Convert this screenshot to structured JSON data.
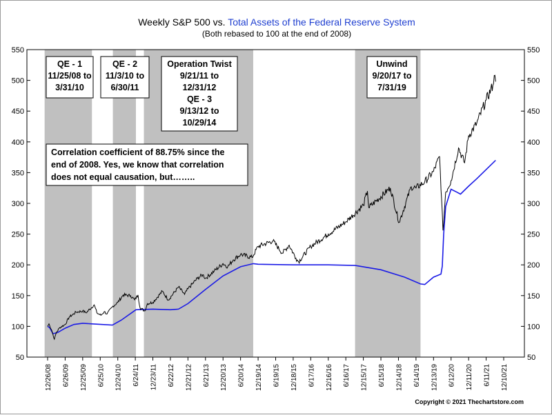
{
  "chart_data": {
    "type": "line",
    "title": {
      "prefix": "Weekly S&P 500 vs. ",
      "highlight": "Total Assets of the Federal Reserve System"
    },
    "subtitle": "(Both rebased to 100 at the end of 2008)",
    "copyright": "Copyright © 2021 Thechartstore.com",
    "ylim": [
      50,
      550
    ],
    "yticks": [
      "50",
      "100",
      "150",
      "200",
      "250",
      "300",
      "350",
      "400",
      "450",
      "500",
      "550"
    ],
    "xlim": [
      "2008-12-26",
      "2021-12-10"
    ],
    "xticks": [
      {
        "date": "2008-12-26",
        "label": "12/26/08"
      },
      {
        "date": "2009-06-26",
        "label": "6/26/09"
      },
      {
        "date": "2009-12-25",
        "label": "12/25/09"
      },
      {
        "date": "2010-06-25",
        "label": "6/25/10"
      },
      {
        "date": "2010-12-24",
        "label": "12/24/10"
      },
      {
        "date": "2011-06-24",
        "label": "6/24/11"
      },
      {
        "date": "2011-12-23",
        "label": "12/23/11"
      },
      {
        "date": "2012-06-22",
        "label": "6/22/12"
      },
      {
        "date": "2012-12-21",
        "label": "12/21/12"
      },
      {
        "date": "2013-06-21",
        "label": "6/21/13"
      },
      {
        "date": "2013-12-20",
        "label": "12/20/13"
      },
      {
        "date": "2014-06-20",
        "label": "6/20/14"
      },
      {
        "date": "2014-12-19",
        "label": "12/19/14"
      },
      {
        "date": "2015-06-19",
        "label": "6/19/15"
      },
      {
        "date": "2015-12-18",
        "label": "12/18/15"
      },
      {
        "date": "2016-06-17",
        "label": "6/17/16"
      },
      {
        "date": "2016-12-16",
        "label": "12/16/16"
      },
      {
        "date": "2017-06-16",
        "label": "6/16/17"
      },
      {
        "date": "2017-12-15",
        "label": "12/15/17"
      },
      {
        "date": "2018-06-15",
        "label": "6/15/18"
      },
      {
        "date": "2018-12-14",
        "label": "12/14/18"
      },
      {
        "date": "2019-06-14",
        "label": "6/14/19"
      },
      {
        "date": "2019-12-13",
        "label": "12/13/19"
      },
      {
        "date": "2020-06-12",
        "label": "6/12/20"
      },
      {
        "date": "2020-12-11",
        "label": "12/11/20"
      },
      {
        "date": "2021-06-11",
        "label": "6/11/21"
      },
      {
        "date": "2021-12-10",
        "label": "12/10/21"
      }
    ],
    "shaded_periods": [
      {
        "start": "2008-11-25",
        "end": "2010-03-31"
      },
      {
        "start": "2010-11-03",
        "end": "2011-06-30"
      },
      {
        "start": "2011-09-21",
        "end": "2014-10-29"
      },
      {
        "start": "2017-09-20",
        "end": "2019-07-31"
      }
    ],
    "period_labels": [
      {
        "lines": [
          "QE - 1",
          "11/25/08 to",
          "3/31/10"
        ]
      },
      {
        "lines": [
          "QE - 2",
          "11/3/10 to",
          "6/30/11"
        ]
      },
      {
        "lines": [
          "Operation Twist",
          "9/21/11 to",
          "12/31/12",
          "QE - 3",
          "9/13/12 to",
          "10/29/14"
        ]
      },
      {
        "lines": [
          "Unwind",
          "9/20/17 to",
          "7/31/19"
        ]
      }
    ],
    "annotation": {
      "lines": [
        "Correlation coefficient of 88.75% since the",
        "end of 2008. Yes, we know that correlation",
        "does not equal causation, but…….."
      ]
    },
    "colors": {
      "sp500": "#000000",
      "fed_assets": "#1a1ae6",
      "shading": "#c0c0c0",
      "title_highlight": "#1f3fd0"
    },
    "legend": "none",
    "grid": false,
    "series": [
      {
        "key": "sp500",
        "points": [
          [
            "2008-12-26",
            100
          ],
          [
            "2009-01-09",
            104
          ],
          [
            "2009-02-06",
            94
          ],
          [
            "2009-03-06",
            79
          ],
          [
            "2009-03-27",
            90
          ],
          [
            "2009-05-01",
            98
          ],
          [
            "2009-06-26",
            103
          ],
          [
            "2009-08-07",
            115
          ],
          [
            "2009-10-16",
            123
          ],
          [
            "2009-12-25",
            125
          ],
          [
            "2010-01-29",
            122
          ],
          [
            "2010-04-23",
            135
          ],
          [
            "2010-05-21",
            122
          ],
          [
            "2010-07-02",
            118
          ],
          [
            "2010-08-06",
            124
          ],
          [
            "2010-09-03",
            120
          ],
          [
            "2010-11-05",
            133
          ],
          [
            "2010-12-24",
            139
          ],
          [
            "2011-02-18",
            151
          ],
          [
            "2011-05-06",
            150
          ],
          [
            "2011-06-17",
            143
          ],
          [
            "2011-07-22",
            151
          ],
          [
            "2011-08-12",
            130
          ],
          [
            "2011-09-30",
            125
          ],
          [
            "2011-10-28",
            137
          ],
          [
            "2011-12-23",
            139
          ],
          [
            "2012-03-30",
            157
          ],
          [
            "2012-06-01",
            143
          ],
          [
            "2012-09-14",
            164
          ],
          [
            "2012-11-16",
            152
          ],
          [
            "2012-12-21",
            161
          ],
          [
            "2013-03-29",
            178
          ],
          [
            "2013-05-24",
            184
          ],
          [
            "2013-06-21",
            178
          ],
          [
            "2013-09-20",
            190
          ],
          [
            "2013-12-20",
            202
          ],
          [
            "2014-02-07",
            197
          ],
          [
            "2014-04-04",
            208
          ],
          [
            "2014-06-20",
            217
          ],
          [
            "2014-10-17",
            212
          ],
          [
            "2014-12-19",
            230
          ],
          [
            "2015-05-22",
            239
          ],
          [
            "2015-08-28",
            219
          ],
          [
            "2015-11-06",
            232
          ],
          [
            "2016-01-15",
            211
          ],
          [
            "2016-02-12",
            205
          ],
          [
            "2016-06-17",
            230
          ],
          [
            "2016-12-16",
            250
          ],
          [
            "2017-06-16",
            270
          ],
          [
            "2017-12-15",
            297
          ],
          [
            "2018-01-26",
            320
          ],
          [
            "2018-02-09",
            293
          ],
          [
            "2018-09-21",
            325
          ],
          [
            "2018-12-21",
            269
          ],
          [
            "2019-04-26",
            327
          ],
          [
            "2019-06-14",
            325
          ],
          [
            "2019-09-13",
            335
          ],
          [
            "2019-12-13",
            352
          ],
          [
            "2020-02-14",
            376
          ],
          [
            "2020-03-20",
            256
          ],
          [
            "2020-04-17",
            318
          ],
          [
            "2020-06-12",
            337
          ],
          [
            "2020-08-28",
            390
          ],
          [
            "2020-10-30",
            366
          ],
          [
            "2020-12-11",
            410
          ],
          [
            "2021-03-05",
            430
          ],
          [
            "2021-06-11",
            468
          ],
          [
            "2021-08-20",
            492
          ],
          [
            "2021-09-03",
            508
          ],
          [
            "2021-09-17",
            498
          ]
        ]
      },
      {
        "key": "fed_assets",
        "points": [
          [
            "2008-12-26",
            100
          ],
          [
            "2009-01-16",
            98
          ],
          [
            "2009-02-20",
            88
          ],
          [
            "2009-04-10",
            90
          ],
          [
            "2009-06-26",
            97
          ],
          [
            "2009-09-25",
            103
          ],
          [
            "2009-12-25",
            105
          ],
          [
            "2010-03-31",
            104
          ],
          [
            "2010-10-29",
            102
          ],
          [
            "2011-01-28",
            110
          ],
          [
            "2011-06-30",
            127
          ],
          [
            "2011-12-23",
            128
          ],
          [
            "2012-06-22",
            127
          ],
          [
            "2012-09-14",
            128
          ],
          [
            "2012-12-21",
            137
          ],
          [
            "2013-06-21",
            160
          ],
          [
            "2013-12-20",
            182
          ],
          [
            "2014-06-20",
            197
          ],
          [
            "2014-10-31",
            202
          ],
          [
            "2014-12-19",
            201
          ],
          [
            "2015-12-18",
            200
          ],
          [
            "2016-12-16",
            200
          ],
          [
            "2017-09-22",
            199
          ],
          [
            "2018-06-15",
            192
          ],
          [
            "2019-02-15",
            180
          ],
          [
            "2019-07-31",
            169
          ],
          [
            "2019-09-13",
            168
          ],
          [
            "2019-12-13",
            180
          ],
          [
            "2020-02-28",
            185
          ],
          [
            "2020-03-13",
            198
          ],
          [
            "2020-03-27",
            250
          ],
          [
            "2020-04-17",
            295
          ],
          [
            "2020-06-12",
            323
          ],
          [
            "2020-08-14",
            318
          ],
          [
            "2020-09-18",
            315
          ],
          [
            "2020-12-11",
            328
          ],
          [
            "2021-03-05",
            340
          ],
          [
            "2021-06-11",
            355
          ],
          [
            "2021-09-17",
            370
          ]
        ]
      }
    ]
  }
}
